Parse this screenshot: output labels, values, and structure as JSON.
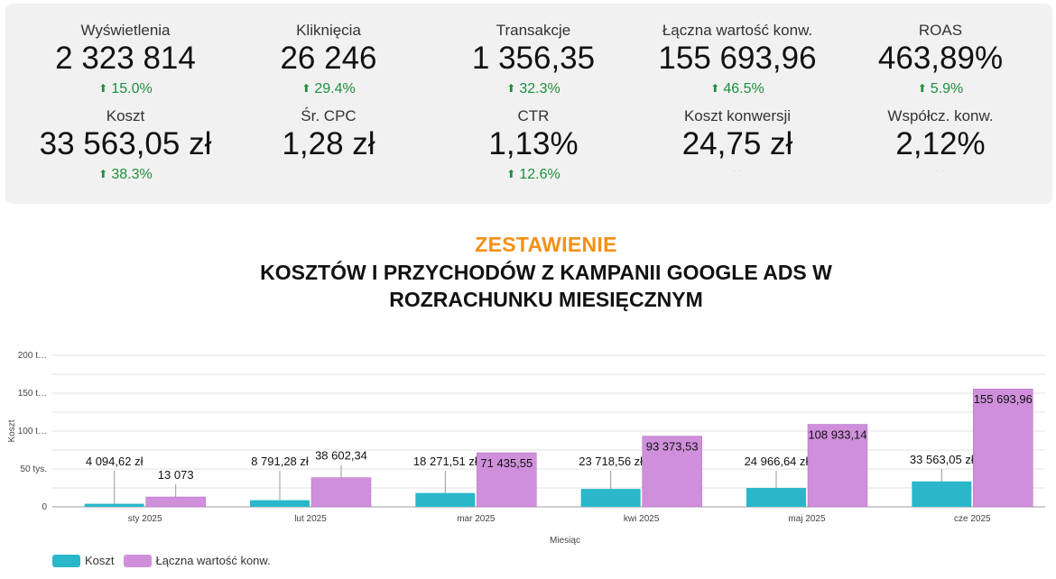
{
  "kpis": [
    {
      "label": "Wyświetlenia",
      "value": "2 323 814",
      "delta": "15.0%"
    },
    {
      "label": "Kliknięcia",
      "value": "26 246",
      "delta": "29.4%"
    },
    {
      "label": "Transakcje",
      "value": "1 356,35",
      "delta": "32.3%"
    },
    {
      "label": "Łączna wartość konw.",
      "value": "155 693,96",
      "delta": "46.5%"
    },
    {
      "label": "ROAS",
      "value": "463,89%",
      "delta": "5.9%"
    },
    {
      "label": "Koszt",
      "value": "33 563,05 zł",
      "delta": "38.3%"
    },
    {
      "label": "Śr. CPC",
      "value": "1,28 zł",
      "delta": ""
    },
    {
      "label": "CTR",
      "value": "1,13%",
      "delta": "12.6%"
    },
    {
      "label": "Koszt konwersji",
      "value": "24,75 zł",
      "delta": ""
    },
    {
      "label": "Współcz. konw.",
      "value": "2,12%",
      "delta": ""
    }
  ],
  "title": {
    "accent": "ZESTAWIENIE",
    "line1": "KOSZTÓW I PRZYCHODÓW Z KAMPANII GOOGLE ADS W",
    "line2": "ROZRACHUNKU MIESIĘCZNYM"
  },
  "colors": {
    "koszt": "#2ab7ca",
    "przychod": "#cf8fdb",
    "positive": "#1e8e3e",
    "accent": "#f39019"
  },
  "chart_data": {
    "type": "bar",
    "categories": [
      "sty 2025",
      "lut 2025",
      "mar 2025",
      "kwi 2025",
      "maj 2025",
      "cze 2025"
    ],
    "series": [
      {
        "name": "Koszt",
        "values": [
          4094.62,
          8791.28,
          18271.51,
          23718.56,
          24966.64,
          33563.05
        ],
        "labels": [
          "4 094,62 zł",
          "8 791,28 zł",
          "18 271,51 zł",
          "23 718,56 zł",
          "24 966,64 zł",
          "33 563,05 zł"
        ]
      },
      {
        "name": "Łączna wartość konw.",
        "values": [
          13073,
          38602.34,
          71435.55,
          93373.53,
          108933.14,
          155693.96
        ],
        "labels": [
          "13 073",
          "38 602,34",
          "71 435,55",
          "93 373,53",
          "108 933,14",
          "155 693,96"
        ]
      }
    ],
    "xlabel": "Miesiąc",
    "ylabel": "Koszt",
    "ylim": [
      0,
      200000
    ],
    "y_ticks": [
      0,
      50000,
      100000,
      150000,
      200000
    ],
    "y_tick_labels": [
      "0",
      "50 tys.",
      "100 t…",
      "150 t…",
      "200 t…"
    ],
    "grid": true,
    "legend": "bottom-left"
  }
}
